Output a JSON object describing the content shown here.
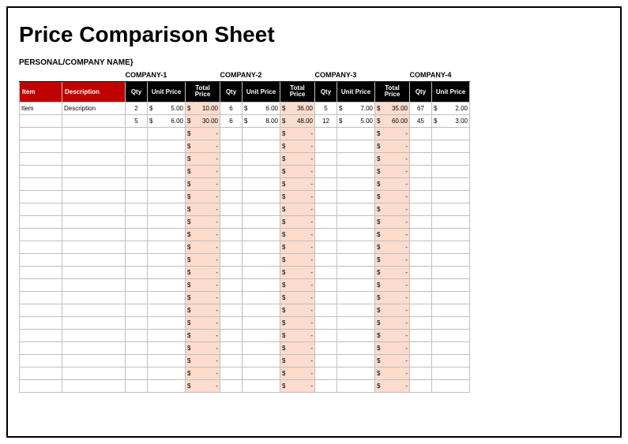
{
  "title": "Price Comparison Sheet",
  "subtitle": "PERSONAL/COMPANY NAME}",
  "colors": {
    "header_red": "#c00000",
    "header_black": "#000000",
    "header_text": "#ffffff",
    "total_fill": "#fcdccd",
    "grid_line": "#bfbfbf",
    "outer_border": "#000000"
  },
  "fonts": {
    "title_size": 28,
    "subtitle_size": 10,
    "cell_size": 8
  },
  "columns": {
    "item": "Item",
    "description": "Description",
    "qty": "Qty",
    "unit_price": "Unit Price",
    "total_price": "Total Price"
  },
  "companies": [
    "COMPANY-1",
    "COMPANY-2",
    "COMPANY-3",
    "COMPANY-4"
  ],
  "currency": "$",
  "blank_total": "-",
  "rows": [
    {
      "item": "Item",
      "description": "Description",
      "c": [
        {
          "qty": 2,
          "unit": "5.00",
          "total": "10.00"
        },
        {
          "qty": 6,
          "unit": "6.00",
          "total": "36.00"
        },
        {
          "qty": 5,
          "unit": "7.00",
          "total": "35.00"
        },
        {
          "qty": 67,
          "unit": "2.00",
          "total": null
        }
      ]
    },
    {
      "item": "",
      "description": "",
      "c": [
        {
          "qty": 5,
          "unit": "6.00",
          "total": "30.00"
        },
        {
          "qty": 6,
          "unit": "8.00",
          "total": "48.00"
        },
        {
          "qty": 12,
          "unit": "5.00",
          "total": "60.00"
        },
        {
          "qty": 45,
          "unit": "3.00",
          "total": null
        }
      ]
    }
  ],
  "empty_row_count": 21
}
